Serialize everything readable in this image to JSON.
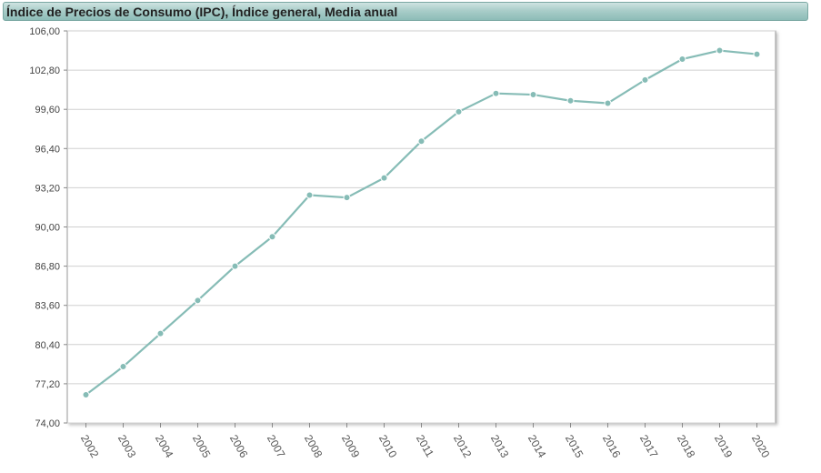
{
  "chart_data": {
    "type": "line",
    "title": "Índice de Precios de Consumo (IPC), Índice general, Media anual",
    "xlabel": "",
    "ylabel": "",
    "ylim": [
      74.0,
      106.0
    ],
    "grid": true,
    "color": "#86bcb6",
    "y_ticks": [
      "74,00",
      "77,20",
      "80,40",
      "83,60",
      "86,80",
      "90,00",
      "93,20",
      "96,40",
      "99,60",
      "102,80",
      "106,00"
    ],
    "categories": [
      "2002",
      "2003",
      "2004",
      "2005",
      "2006",
      "2007",
      "2008",
      "2009",
      "2010",
      "2011",
      "2012",
      "2013",
      "2014",
      "2015",
      "2016",
      "2017",
      "2018",
      "2019",
      "2020"
    ],
    "series": [
      {
        "values": [
          76.3,
          78.6,
          81.3,
          84.0,
          86.8,
          89.2,
          92.6,
          92.4,
          94.0,
          97.0,
          99.4,
          100.9,
          100.8,
          100.3,
          100.1,
          102.0,
          103.7,
          104.4,
          104.1
        ]
      }
    ]
  }
}
